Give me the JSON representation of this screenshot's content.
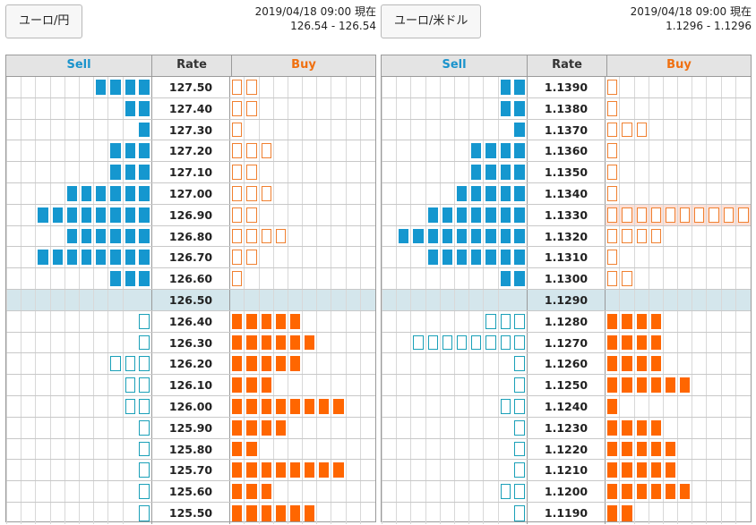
{
  "panels": [
    {
      "pair": "ユーロ/円",
      "datetime": "2019/04/18 09:00 現在",
      "quote": "126.54 - 126.54",
      "headers": {
        "sell": "Sell",
        "rate": "Rate",
        "buy": "Buy"
      },
      "rows": [
        {
          "rate": "127.50",
          "sell": 4,
          "sell_style": "solid",
          "buy": 2,
          "buy_style": "outline"
        },
        {
          "rate": "127.40",
          "sell": 2,
          "sell_style": "solid",
          "buy": 2,
          "buy_style": "outline"
        },
        {
          "rate": "127.30",
          "sell": 1,
          "sell_style": "solid",
          "buy": 1,
          "buy_style": "outline"
        },
        {
          "rate": "127.20",
          "sell": 3,
          "sell_style": "solid",
          "buy": 3,
          "buy_style": "outline"
        },
        {
          "rate": "127.10",
          "sell": 3,
          "sell_style": "solid",
          "buy": 2,
          "buy_style": "outline"
        },
        {
          "rate": "127.00",
          "sell": 6,
          "sell_style": "solid",
          "buy": 3,
          "buy_style": "outline"
        },
        {
          "rate": "126.90",
          "sell": 8,
          "sell_style": "solid",
          "buy": 2,
          "buy_style": "outline"
        },
        {
          "rate": "126.80",
          "sell": 6,
          "sell_style": "solid",
          "buy": 4,
          "buy_style": "outline"
        },
        {
          "rate": "126.70",
          "sell": 8,
          "sell_style": "solid",
          "buy": 2,
          "buy_style": "outline"
        },
        {
          "rate": "126.60",
          "sell": 3,
          "sell_style": "solid",
          "buy": 1,
          "buy_style": "outline"
        },
        {
          "rate": "126.50",
          "sell": 0,
          "buy": 0,
          "mid": true
        },
        {
          "rate": "126.40",
          "sell": 1,
          "sell_style": "outline",
          "buy": 5,
          "buy_style": "solid"
        },
        {
          "rate": "126.30",
          "sell": 1,
          "sell_style": "outline",
          "buy": 6,
          "buy_style": "solid"
        },
        {
          "rate": "126.20",
          "sell": 3,
          "sell_style": "outline",
          "buy": 5,
          "buy_style": "solid"
        },
        {
          "rate": "126.10",
          "sell": 2,
          "sell_style": "outline",
          "buy": 3,
          "buy_style": "solid"
        },
        {
          "rate": "126.00",
          "sell": 2,
          "sell_style": "outline",
          "buy": 8,
          "buy_style": "solid"
        },
        {
          "rate": "125.90",
          "sell": 1,
          "sell_style": "outline",
          "buy": 4,
          "buy_style": "solid"
        },
        {
          "rate": "125.80",
          "sell": 1,
          "sell_style": "outline",
          "buy": 2,
          "buy_style": "solid"
        },
        {
          "rate": "125.70",
          "sell": 1,
          "sell_style": "outline",
          "buy": 8,
          "buy_style": "solid"
        },
        {
          "rate": "125.60",
          "sell": 1,
          "sell_style": "outline",
          "buy": 3,
          "buy_style": "solid"
        },
        {
          "rate": "125.50",
          "sell": 1,
          "sell_style": "outline",
          "buy": 6,
          "buy_style": "solid"
        }
      ]
    },
    {
      "pair": "ユーロ/米ドル",
      "datetime": "2019/04/18 09:00 現在",
      "quote": "1.1296 - 1.1296",
      "headers": {
        "sell": "Sell",
        "rate": "Rate",
        "buy": "Buy"
      },
      "rows": [
        {
          "rate": "1.1390",
          "sell": 2,
          "sell_style": "solid",
          "buy": 1,
          "buy_style": "outline"
        },
        {
          "rate": "1.1380",
          "sell": 2,
          "sell_style": "solid",
          "buy": 1,
          "buy_style": "outline"
        },
        {
          "rate": "1.1370",
          "sell": 1,
          "sell_style": "solid",
          "buy": 3,
          "buy_style": "outline"
        },
        {
          "rate": "1.1360",
          "sell": 4,
          "sell_style": "solid",
          "buy": 1,
          "buy_style": "outline"
        },
        {
          "rate": "1.1350",
          "sell": 4,
          "sell_style": "solid",
          "buy": 1,
          "buy_style": "outline"
        },
        {
          "rate": "1.1340",
          "sell": 5,
          "sell_style": "solid",
          "buy": 1,
          "buy_style": "outline"
        },
        {
          "rate": "1.1330",
          "sell": 7,
          "sell_style": "solid",
          "buy": 10,
          "buy_style": "outline",
          "buy_highlight": true
        },
        {
          "rate": "1.1320",
          "sell": 9,
          "sell_style": "solid",
          "buy": 4,
          "buy_style": "outline"
        },
        {
          "rate": "1.1310",
          "sell": 7,
          "sell_style": "solid",
          "buy": 1,
          "buy_style": "outline"
        },
        {
          "rate": "1.1300",
          "sell": 2,
          "sell_style": "solid",
          "buy": 2,
          "buy_style": "outline"
        },
        {
          "rate": "1.1290",
          "sell": 0,
          "buy": 0,
          "mid": true
        },
        {
          "rate": "1.1280",
          "sell": 3,
          "sell_style": "outline",
          "buy": 4,
          "buy_style": "solid"
        },
        {
          "rate": "1.1270",
          "sell": 8,
          "sell_style": "outline",
          "buy": 4,
          "buy_style": "solid"
        },
        {
          "rate": "1.1260",
          "sell": 1,
          "sell_style": "outline",
          "buy": 4,
          "buy_style": "solid"
        },
        {
          "rate": "1.1250",
          "sell": 1,
          "sell_style": "outline",
          "buy": 6,
          "buy_style": "solid"
        },
        {
          "rate": "1.1240",
          "sell": 2,
          "sell_style": "outline",
          "buy": 1,
          "buy_style": "solid"
        },
        {
          "rate": "1.1230",
          "sell": 1,
          "sell_style": "outline",
          "buy": 4,
          "buy_style": "solid"
        },
        {
          "rate": "1.1220",
          "sell": 1,
          "sell_style": "outline",
          "buy": 5,
          "buy_style": "solid"
        },
        {
          "rate": "1.1210",
          "sell": 1,
          "sell_style": "outline",
          "buy": 5,
          "buy_style": "solid"
        },
        {
          "rate": "1.1200",
          "sell": 2,
          "sell_style": "outline",
          "buy": 6,
          "buy_style": "solid"
        },
        {
          "rate": "1.1190",
          "sell": 1,
          "sell_style": "outline",
          "buy": 2,
          "buy_style": "solid"
        }
      ]
    }
  ],
  "colors": {
    "sell_solid": "#1597cf",
    "sell_outline": "#1aa0b8",
    "buy_solid": "#ff6600",
    "buy_outline": "#f08030",
    "mid_row": "#d4e6ec",
    "highlight": "#fde0d6"
  }
}
